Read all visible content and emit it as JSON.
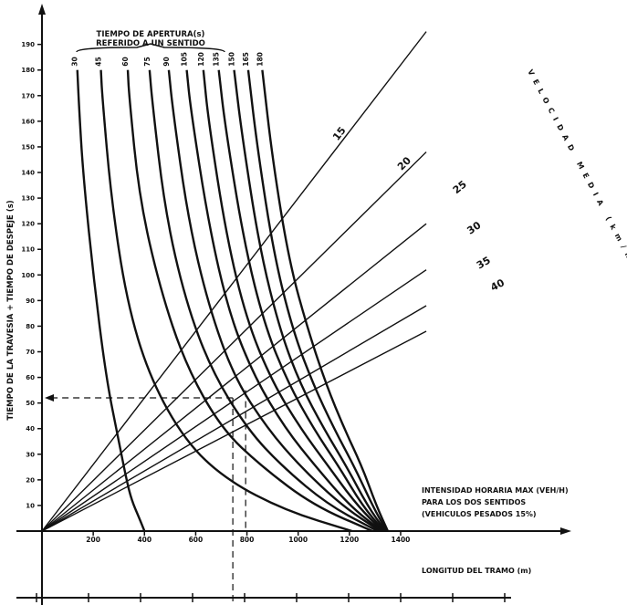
{
  "chart_data": {
    "type": "line",
    "ylabel": "TIEMPO DE LA TRAVESIA + TIEMPO DE DESPEJE (s)",
    "top_title_line1": "TIEMPO DE APERTURA(s)",
    "top_title_line2": "REFERIDO A UN SENTIDO",
    "speed_axis_label": "VELOCIDAD MEDIA (km/h)",
    "intensity_label": [
      "INTENSIDAD HORARIA MAX (VEH/H)",
      "PARA LOS DOS SENTIDOS",
      "(VEHICULOS PESADOS 15%)"
    ],
    "length_label": "LONGITUD DEL TRAMO (m)",
    "y_ticks": [
      10,
      20,
      30,
      40,
      50,
      60,
      70,
      80,
      90,
      100,
      110,
      120,
      130,
      140,
      150,
      160,
      170,
      180,
      190
    ],
    "ylim": [
      0,
      195
    ],
    "x_ticks": [
      200,
      400,
      600,
      800,
      1000,
      1200,
      1400
    ],
    "xlim": [
      0,
      1550
    ],
    "opening_time_curves": [
      {
        "name": "30",
        "x": [
          400,
          380,
          350,
          330,
          300,
          250,
          200,
          160,
          145,
          138
        ],
        "y": [
          0,
          5,
          12,
          20,
          35,
          60,
          100,
          140,
          165,
          180
        ]
      },
      {
        "name": "45",
        "x": [
          1210,
          950,
          720,
          560,
          420,
          330,
          270,
          235,
          230
        ],
        "y": [
          0,
          8,
          20,
          35,
          60,
          90,
          130,
          170,
          180
        ]
      },
      {
        "name": "60",
        "x": [
          1290,
          1060,
          860,
          700,
          560,
          460,
          380,
          340,
          335
        ],
        "y": [
          0,
          10,
          25,
          40,
          65,
          95,
          130,
          170,
          180
        ]
      },
      {
        "name": "75",
        "x": [
          1310,
          1120,
          940,
          800,
          660,
          560,
          480,
          430,
          420
        ],
        "y": [
          0,
          10,
          25,
          40,
          63,
          90,
          125,
          168,
          180
        ]
      },
      {
        "name": "90",
        "x": [
          1320,
          1170,
          1010,
          880,
          750,
          650,
          570,
          510,
          495
        ],
        "y": [
          0,
          10,
          25,
          40,
          60,
          88,
          122,
          165,
          180
        ]
      },
      {
        "name": "105",
        "x": [
          1325,
          1200,
          1070,
          950,
          830,
          730,
          650,
          580,
          565
        ],
        "y": [
          0,
          10,
          25,
          40,
          60,
          85,
          120,
          165,
          180
        ]
      },
      {
        "name": "120",
        "x": [
          1330,
          1230,
          1120,
          1010,
          900,
          800,
          720,
          650,
          630
        ],
        "y": [
          0,
          10,
          25,
          40,
          58,
          82,
          115,
          160,
          180
        ]
      },
      {
        "name": "135",
        "x": [
          1335,
          1250,
          1160,
          1060,
          960,
          870,
          790,
          715,
          690
        ],
        "y": [
          0,
          10,
          25,
          40,
          58,
          80,
          112,
          158,
          180
        ]
      },
      {
        "name": "150",
        "x": [
          1340,
          1270,
          1190,
          1100,
          1010,
          930,
          850,
          780,
          750
        ],
        "y": [
          0,
          10,
          25,
          40,
          57,
          78,
          110,
          155,
          180
        ]
      },
      {
        "name": "165",
        "x": [
          1345,
          1290,
          1220,
          1140,
          1060,
          980,
          905,
          840,
          805
        ],
        "y": [
          0,
          10,
          25,
          40,
          57,
          78,
          108,
          150,
          180
        ]
      },
      {
        "name": "180",
        "x": [
          1350,
          1305,
          1250,
          1180,
          1110,
          1040,
          965,
          900,
          860
        ],
        "y": [
          0,
          10,
          25,
          40,
          57,
          78,
          105,
          145,
          180
        ]
      }
    ],
    "speed_lines": [
      {
        "name": "15",
        "x": [
          0,
          1500
        ],
        "y": [
          0,
          195
        ]
      },
      {
        "name": "20",
        "x": [
          0,
          1500
        ],
        "y": [
          0,
          148
        ]
      },
      {
        "name": "25",
        "x": [
          0,
          1500
        ],
        "y": [
          0,
          120
        ]
      },
      {
        "name": "30",
        "x": [
          0,
          1500
        ],
        "y": [
          0,
          102
        ]
      },
      {
        "name": "35",
        "x": [
          0,
          1500
        ],
        "y": [
          0,
          88
        ]
      },
      {
        "name": "40",
        "x": [
          0,
          1500
        ],
        "y": [
          0,
          78
        ]
      }
    ],
    "example_guide": {
      "x": 745,
      "y": 52,
      "x_bottom": 795
    }
  }
}
